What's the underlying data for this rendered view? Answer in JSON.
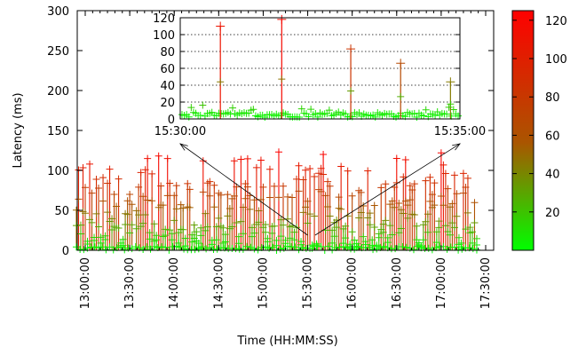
{
  "chart_data": [
    {
      "type": "scatter",
      "xlabel": "Time (HH:MM:SS)",
      "ylabel": "Latency (ms)",
      "ylim": [
        0,
        300
      ],
      "y_ticks": [
        0,
        50,
        100,
        150,
        200,
        250,
        300
      ],
      "x_tick_labels": [
        "13:00:00",
        "13:30:00",
        "14:00:00",
        "14:30:00",
        "15:00:00",
        "15:30:00",
        "16:00:00",
        "16:30:00",
        "17:00:00",
        "17:30:00"
      ],
      "x_range": [
        "12:54:00",
        "17:30:00"
      ],
      "marker": "+",
      "color_scale": {
        "low": "#00ff00",
        "mid": "#aa5500",
        "high": "#ff0000"
      },
      "colorbar_ticks": [
        20,
        40,
        60,
        80,
        100,
        120
      ],
      "colorbar_range": [
        0,
        125
      ],
      "gaps": [
        [
          "13:32:00",
          "13:34:00"
        ]
      ],
      "notable_spikes": [
        {
          "x": "13:50:00",
          "y": 118
        },
        {
          "x": "14:20:00",
          "y": 112
        },
        {
          "x": "15:10:00",
          "y": 123
        },
        {
          "x": "15:40:00",
          "y": 120
        },
        {
          "x": "16:30:00",
          "y": 115
        },
        {
          "x": "17:00:00",
          "y": 122
        }
      ]
    },
    {
      "type": "scatter",
      "inset": true,
      "ylim": [
        0,
        120
      ],
      "y_ticks": [
        0,
        20,
        40,
        60,
        80,
        100,
        120
      ],
      "x_tick_labels": [
        "15:30:00",
        "15:35:00"
      ],
      "marker": "+",
      "grid": true,
      "spikes": [
        {
          "x": "15:30:30",
          "y": 110
        },
        {
          "x": "15:31:50",
          "y": 118
        },
        {
          "x": "15:33:20",
          "y": 83
        },
        {
          "x": "15:34:25",
          "y": 66
        },
        {
          "x": "15:35:30",
          "y": 44
        }
      ]
    }
  ]
}
